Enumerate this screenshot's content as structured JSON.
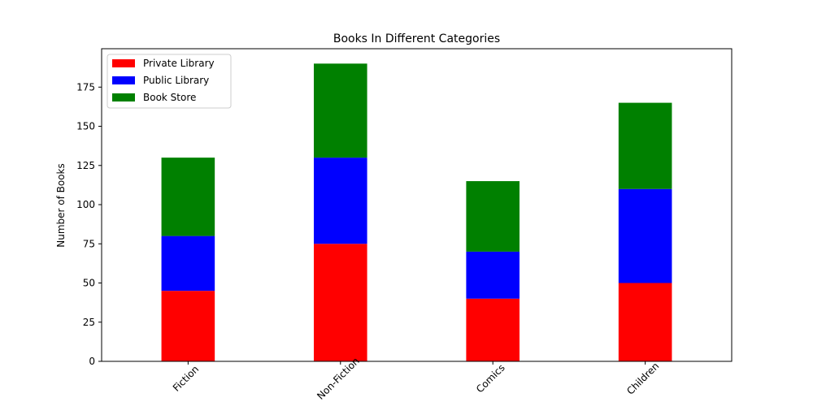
{
  "chart_data": {
    "type": "bar",
    "stacked": true,
    "title": "Books In Different Categories",
    "xlabel": "",
    "ylabel": "Number of Books",
    "categories": [
      "Fiction",
      "Non-Fiction",
      "Comics",
      "Children"
    ],
    "series": [
      {
        "name": "Private Library",
        "color": "#ff0000",
        "values": [
          45,
          75,
          40,
          50
        ]
      },
      {
        "name": "Public Library",
        "color": "#0000ff",
        "values": [
          35,
          55,
          30,
          60
        ]
      },
      {
        "name": "Book Store",
        "color": "#008000",
        "values": [
          50,
          60,
          45,
          55
        ]
      }
    ],
    "ylim": [
      0,
      199.5
    ],
    "yticks": [
      "0",
      "25",
      "50",
      "75",
      "100",
      "125",
      "150",
      "175"
    ],
    "grid": false,
    "legend_position": "top-left",
    "xtick_rotation": 45
  }
}
